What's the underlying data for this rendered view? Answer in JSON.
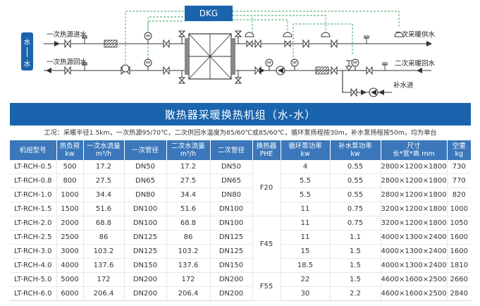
{
  "diagram": {
    "controller_label": "DKG",
    "side_label_top": "水",
    "side_label_bottom": "水",
    "primary_supply_in": "一次热源进水",
    "primary_return": "一次热源回水",
    "secondary_supply": "二次采暖供水",
    "secondary_return": "二次采暖回水",
    "makeup_in": "补水进",
    "gauge_letters": "MP"
  },
  "title": "散热器采暖换热机组（水-水）",
  "condition": "工况：采暖半径1.5km，一次热源95/70℃，二次供回水温度为85/60℃或85/60℃，循环泵扬程按30m，补水泵扬程按50m，均为单台",
  "headers": [
    {
      "l1": "机组型号",
      "l2": ""
    },
    {
      "l1": "热负荷",
      "l2": "kw"
    },
    {
      "l1": "一次水流量",
      "l2": "m³/h"
    },
    {
      "l1": "一次管径",
      "l2": ""
    },
    {
      "l1": "二次水流量",
      "l2": "m³/h"
    },
    {
      "l1": "二次管径",
      "l2": ""
    },
    {
      "l1": "换热器",
      "l2": "PHE"
    },
    {
      "l1": "循环泵功率",
      "l2": "kw"
    },
    {
      "l1": "补水泵功率",
      "l2": "kw"
    },
    {
      "l1": "尺寸",
      "l2": "长*宽*高 mm"
    },
    {
      "l1": "空重",
      "l2": "kg"
    }
  ],
  "rows": [
    [
      "LT-RCH-0.5",
      "500",
      "17.2",
      "DN50",
      "17.2",
      "DN50",
      "4",
      "0.55",
      "2800×1200×1800",
      "730"
    ],
    [
      "LT-RCH-0.8",
      "800",
      "27.5",
      "DN65",
      "27.5",
      "DN65",
      "5.5",
      "0.55",
      "2800×1200×1800",
      "770"
    ],
    [
      "LT-RCH-1.0",
      "1000",
      "34.4",
      "DN80",
      "34.4",
      "DN80",
      "5.5",
      "0.55",
      "2800×1200×1800",
      "820"
    ],
    [
      "LT-RCH-1.5",
      "1500",
      "51.6",
      "DN100",
      "51.6",
      "DN100",
      "11",
      "0.75",
      "3200×1200×1800",
      "1000"
    ],
    [
      "LT-RCH-2.0",
      "2000",
      "68.8",
      "DN100",
      "68.8",
      "DN100",
      "11",
      "0.75",
      "3200×1200×1800",
      "1050"
    ],
    [
      "LT-RCH-2.5",
      "2500",
      "86",
      "DN125",
      "86",
      "DN125",
      "11",
      "1.1",
      "4000×1300×2400",
      "1600"
    ],
    [
      "LT-RCH-3.0",
      "3000",
      "103.2",
      "DN125",
      "103.2",
      "DN125",
      "15",
      "1.5",
      "4000×1300×2400",
      "1600"
    ],
    [
      "LT-RCH-4.0",
      "4000",
      "137.6",
      "DN150",
      "137.6",
      "DN150",
      "18.5",
      "1.5",
      "4000×1300×2400",
      "1810"
    ],
    [
      "LT-RCH-5.0",
      "5000",
      "172",
      "DN200",
      "172",
      "DN200",
      "22",
      "1.5",
      "4600×1600×2500",
      "2660"
    ],
    [
      "LT-RCH-6.0",
      "6000",
      "206.4",
      "DN200",
      "206.4",
      "DN200",
      "30",
      "2.2",
      "4600×1600×2500",
      "2840"
    ]
  ],
  "phe_groups": [
    {
      "label": "F20",
      "rowspan": 4
    },
    {
      "label": "F45",
      "rowspan": 4
    },
    {
      "label": "F55",
      "rowspan": 2
    }
  ],
  "colors": {
    "banner": "#1a64ad",
    "header": "#3b77ba",
    "dash": "#3aa65b"
  }
}
